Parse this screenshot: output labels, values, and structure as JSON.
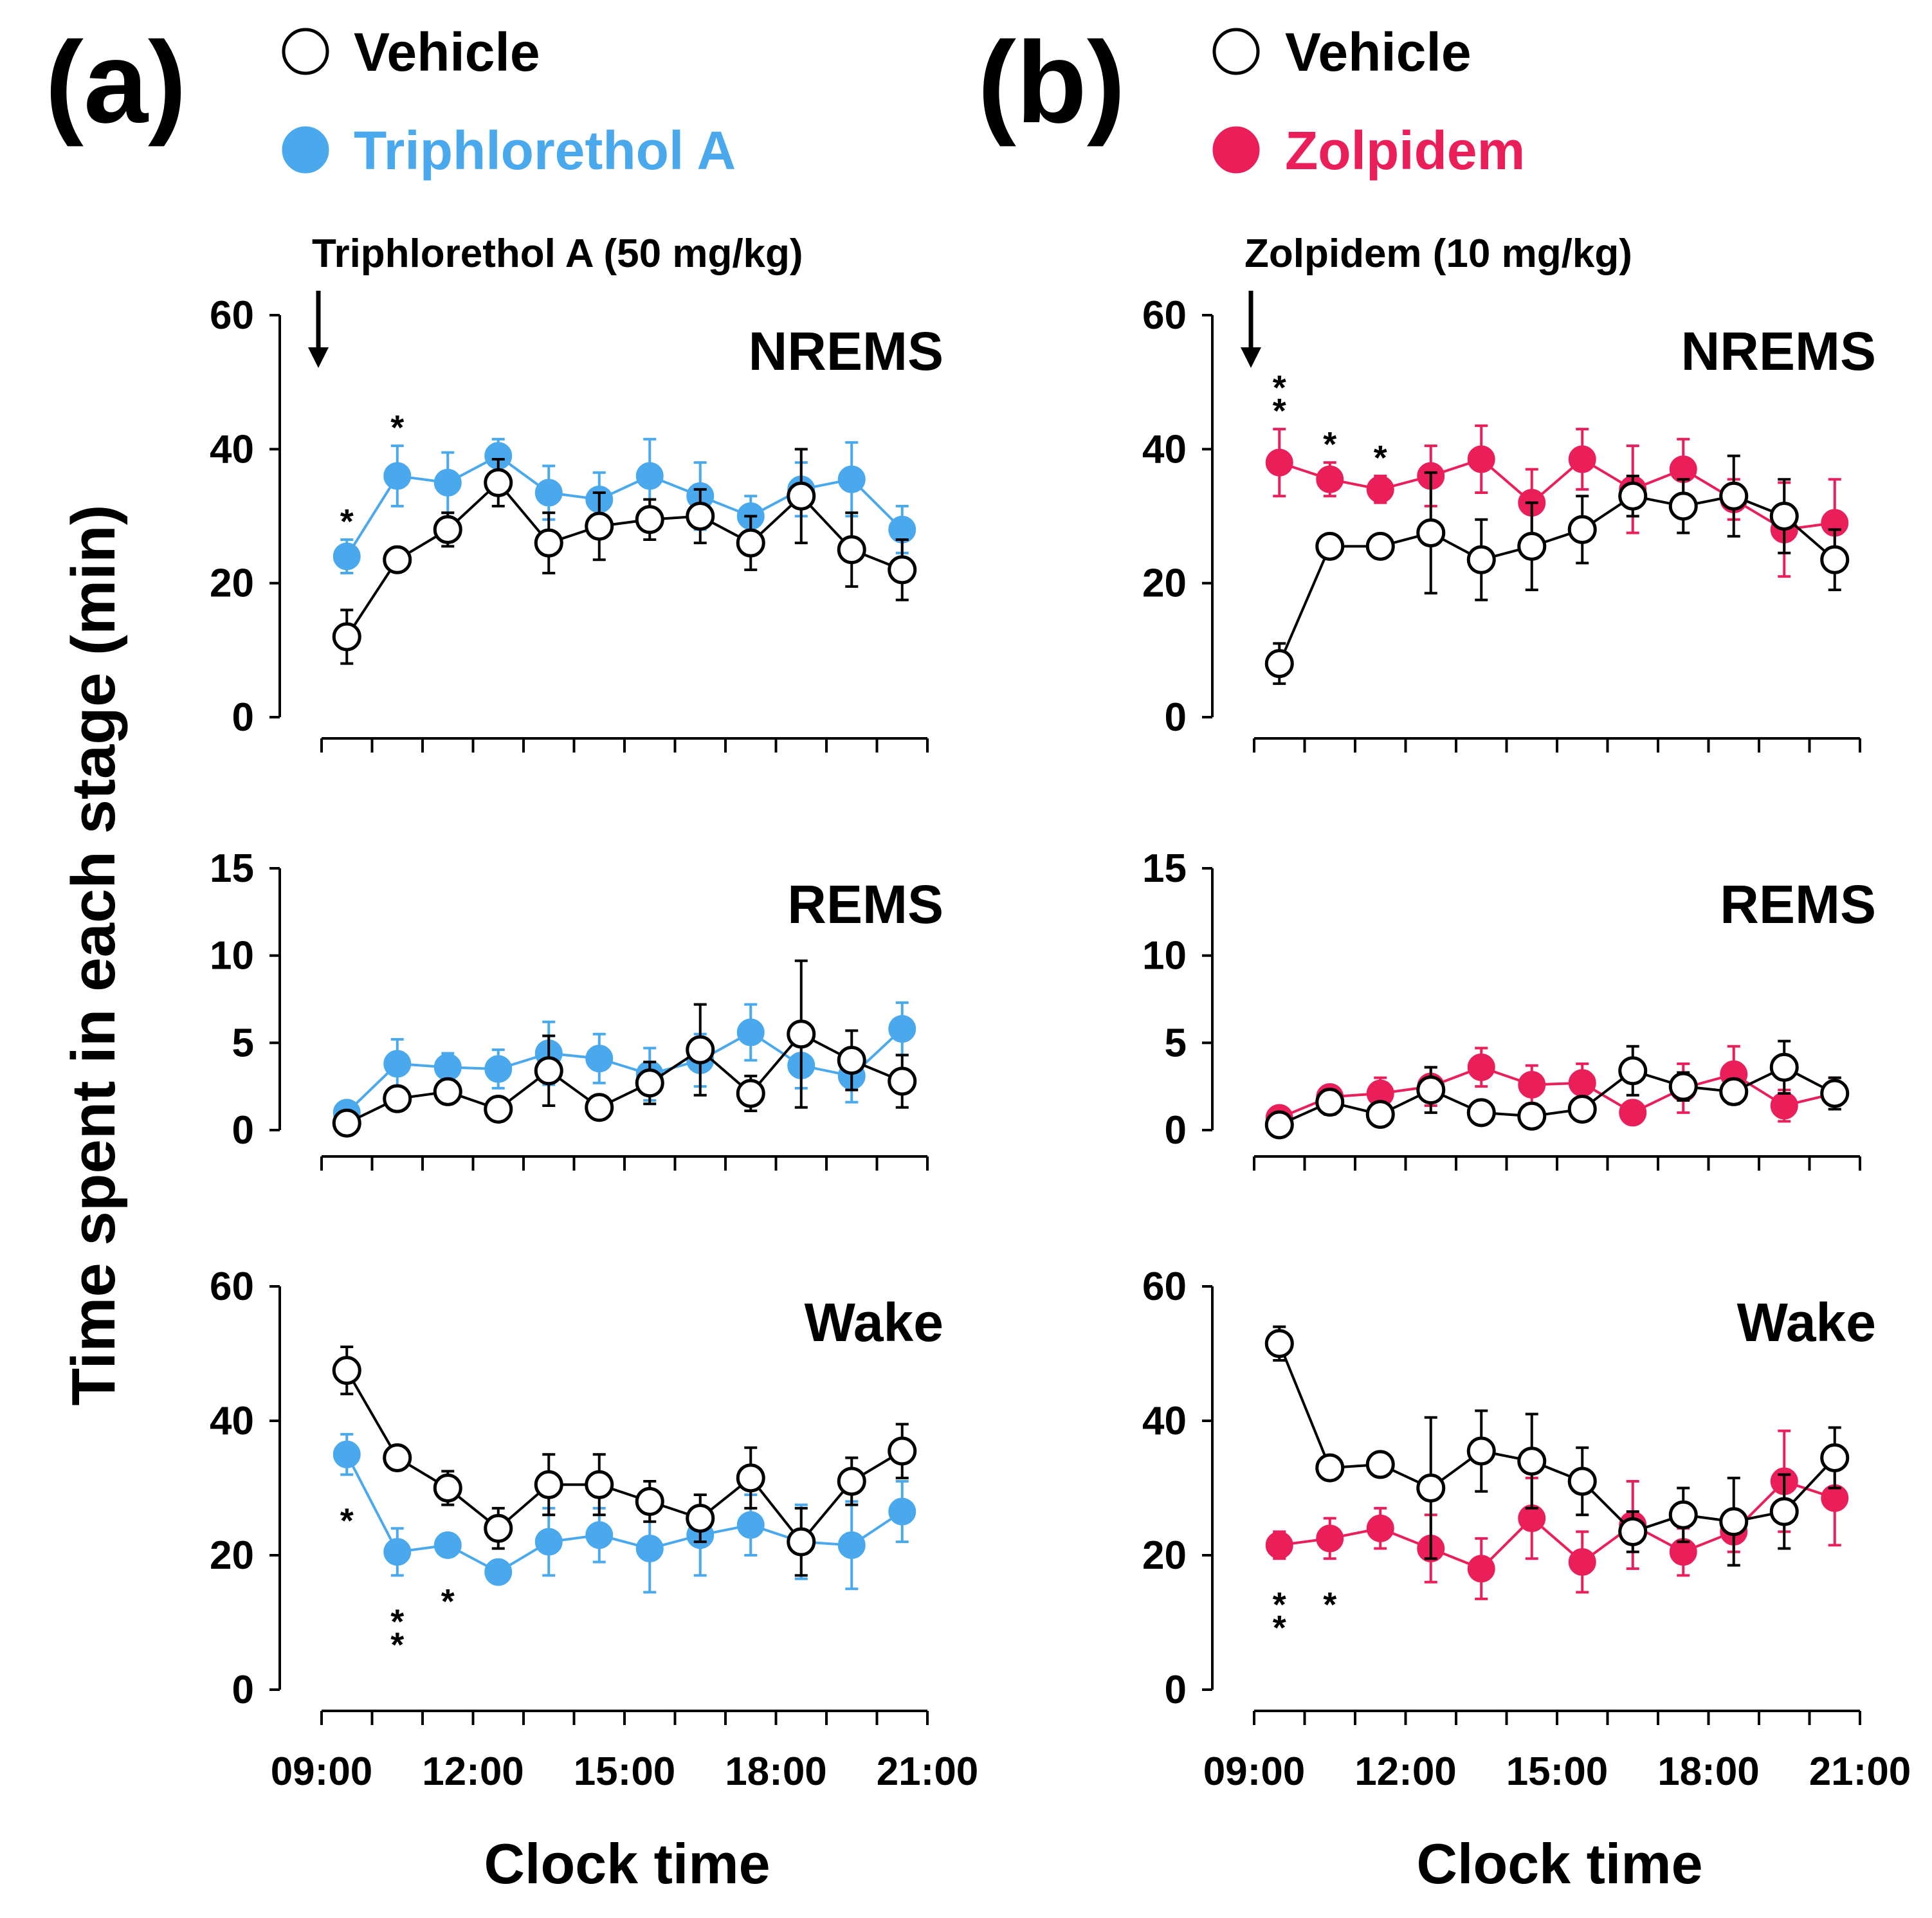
{
  "figure": {
    "ylabel": "Time spent in each stage (min)",
    "xlabel": "Clock time",
    "xtick_labels": [
      "09:00",
      "12:00",
      "15:00",
      "18:00",
      "21:00"
    ]
  },
  "panels": [
    {
      "id": "a",
      "letter": "(a)",
      "legend": [
        {
          "label": "Vehicle",
          "filled": false,
          "color": "#000000"
        },
        {
          "label": "Triphlorethol A",
          "filled": true,
          "color": "#4aa8ec"
        }
      ],
      "drug_label": "Triphlorethol A (50 mg/kg)"
    },
    {
      "id": "b",
      "letter": "(b)",
      "legend": [
        {
          "label": "Vehicle",
          "filled": false,
          "color": "#000000"
        },
        {
          "label": "Zolpidem",
          "filled": true,
          "color": "#ea1f5a"
        }
      ],
      "drug_label": "Zolpidem (10 mg/kg)"
    }
  ],
  "chart_data": [
    {
      "type": "line",
      "panel": "a",
      "title": "NREMS",
      "xlabel": "Clock time",
      "ylabel": "Time spent in each stage (min)",
      "x": [
        9.5,
        10.5,
        11.5,
        12.5,
        13.5,
        14.5,
        15.5,
        16.5,
        17.5,
        18.5,
        19.5,
        20.5
      ],
      "ylim": [
        0,
        60
      ],
      "yticks": [
        0,
        20,
        40,
        60
      ],
      "series": [
        {
          "name": "Vehicle",
          "filled": false,
          "values": [
            12,
            23.5,
            28,
            35,
            26,
            28.5,
            29.5,
            30,
            26,
            33,
            25,
            22
          ],
          "errors": [
            4,
            1.5,
            2.5,
            3.5,
            4.5,
            5,
            3,
            4,
            4,
            7,
            5.5,
            4.5
          ]
        },
        {
          "name": "Triphlorethol A",
          "filled": true,
          "values": [
            24,
            36,
            35,
            39,
            33.5,
            32.5,
            36,
            33,
            30,
            34,
            35.5,
            28
          ],
          "errors": [
            2.5,
            4.5,
            4.5,
            2.5,
            4,
            4,
            5.5,
            5,
            3,
            4,
            5.5,
            3.5
          ]
        }
      ],
      "significance": [
        {
          "x": 9.5,
          "marks": "*"
        },
        {
          "x": 10.5,
          "marks": "*"
        }
      ]
    },
    {
      "type": "line",
      "panel": "a",
      "title": "REMS",
      "xlabel": "Clock time",
      "ylabel": "Time spent in each stage (min)",
      "x": [
        9.5,
        10.5,
        11.5,
        12.5,
        13.5,
        14.5,
        15.5,
        16.5,
        17.5,
        18.5,
        19.5,
        20.5
      ],
      "ylim": [
        0,
        15
      ],
      "yticks": [
        0,
        5,
        10,
        15
      ],
      "series": [
        {
          "name": "Vehicle",
          "filled": false,
          "values": [
            0.4,
            1.8,
            2.2,
            1.2,
            3.4,
            1.3,
            2.7,
            4.6,
            2.1,
            5.5,
            4,
            2.8
          ],
          "errors": [
            0.3,
            0.6,
            0.6,
            0.5,
            2,
            0.5,
            1.2,
            2.6,
            1,
            4.2,
            1.7,
            1.5
          ]
        },
        {
          "name": "Triphlorethol A",
          "filled": true,
          "values": [
            1,
            3.8,
            3.6,
            3.5,
            4.4,
            4.1,
            3.2,
            4,
            5.6,
            3.7,
            3.1,
            5.8
          ],
          "errors": [
            0.5,
            1.4,
            0.8,
            1.1,
            1.8,
            1.4,
            1.5,
            1.5,
            1.6,
            1.3,
            1.5,
            1.5
          ]
        }
      ],
      "significance": []
    },
    {
      "type": "line",
      "panel": "a",
      "title": "Wake",
      "xlabel": "Clock time",
      "ylabel": "Time spent in each stage (min)",
      "x": [
        9.5,
        10.5,
        11.5,
        12.5,
        13.5,
        14.5,
        15.5,
        16.5,
        17.5,
        18.5,
        19.5,
        20.5
      ],
      "ylim": [
        0,
        60
      ],
      "yticks": [
        0,
        20,
        40,
        60
      ],
      "series": [
        {
          "name": "Vehicle",
          "filled": false,
          "values": [
            47.5,
            34.5,
            30,
            24,
            30.5,
            30.5,
            28,
            25.5,
            31.5,
            22,
            31,
            35.5
          ],
          "errors": [
            3.5,
            1.5,
            2.5,
            3,
            4.5,
            4.5,
            3,
            3.5,
            4.5,
            5,
            3.5,
            4
          ]
        },
        {
          "name": "Triphlorethol A",
          "filled": true,
          "values": [
            35,
            20.5,
            21.5,
            17.5,
            22,
            23,
            21,
            23,
            24.5,
            22,
            21.5,
            26.5
          ],
          "errors": [
            3,
            3.5,
            1.5,
            1.5,
            5,
            4,
            6.5,
            6,
            4.5,
            5.5,
            6.5,
            4.5
          ]
        }
      ],
      "significance": [
        {
          "x": 9.5,
          "marks": "*"
        },
        {
          "x": 10.5,
          "marks": "**"
        },
        {
          "x": 11.5,
          "marks": "*"
        }
      ]
    },
    {
      "type": "line",
      "panel": "b",
      "title": "NREMS",
      "xlabel": "Clock time",
      "ylabel": "Time spent in each stage (min)",
      "x": [
        9.5,
        10.5,
        11.5,
        12.5,
        13.5,
        14.5,
        15.5,
        16.5,
        17.5,
        18.5,
        19.5,
        20.5
      ],
      "ylim": [
        0,
        60
      ],
      "yticks": [
        0,
        20,
        40,
        60
      ],
      "series": [
        {
          "name": "Vehicle",
          "filled": false,
          "values": [
            8,
            25.5,
            25.5,
            27.5,
            23.5,
            25.5,
            28,
            33,
            31.5,
            33,
            30,
            23.5
          ],
          "errors": [
            3,
            1,
            1.5,
            9,
            6,
            6.5,
            5,
            3,
            4,
            6,
            5.5,
            4.5
          ]
        },
        {
          "name": "Zolpidem",
          "filled": true,
          "values": [
            38,
            35.5,
            34,
            36,
            38.5,
            32,
            38.5,
            34,
            37,
            32.5,
            28,
            29
          ],
          "errors": [
            5,
            2.5,
            2,
            4.5,
            5,
            5,
            4.5,
            6.5,
            4.5,
            3,
            7,
            6.5
          ]
        }
      ],
      "significance": [
        {
          "x": 9.5,
          "marks": "**"
        },
        {
          "x": 10.5,
          "marks": "*"
        },
        {
          "x": 11.5,
          "marks": "*"
        }
      ]
    },
    {
      "type": "line",
      "panel": "b",
      "title": "REMS",
      "xlabel": "Clock time",
      "ylabel": "Time spent in each stage (min)",
      "x": [
        9.5,
        10.5,
        11.5,
        12.5,
        13.5,
        14.5,
        15.5,
        16.5,
        17.5,
        18.5,
        19.5,
        20.5
      ],
      "ylim": [
        0,
        15
      ],
      "yticks": [
        0,
        5,
        10,
        15
      ],
      "series": [
        {
          "name": "Vehicle",
          "filled": false,
          "values": [
            0.3,
            1.6,
            0.9,
            2.3,
            1,
            0.8,
            1.2,
            3.4,
            2.5,
            2.2,
            3.6,
            2.1
          ],
          "errors": [
            0.3,
            0.7,
            0.4,
            1.3,
            0.4,
            0.3,
            0.5,
            1.4,
            0.8,
            0.7,
            1.5,
            0.9
          ]
        },
        {
          "name": "Zolpidem",
          "filled": true,
          "values": [
            0.7,
            1.9,
            2.1,
            2.5,
            3.6,
            2.6,
            2.7,
            1,
            2.4,
            3.2,
            1.4,
            2.1
          ],
          "errors": [
            0.4,
            0.6,
            0.9,
            1.1,
            1.1,
            1.1,
            1.1,
            0.5,
            1.4,
            1.6,
            0.9,
            0.9
          ]
        }
      ],
      "significance": []
    },
    {
      "type": "line",
      "panel": "b",
      "title": "Wake",
      "xlabel": "Clock time",
      "ylabel": "Time spent in each stage (min)",
      "x": [
        9.5,
        10.5,
        11.5,
        12.5,
        13.5,
        14.5,
        15.5,
        16.5,
        17.5,
        18.5,
        19.5,
        20.5
      ],
      "ylim": [
        0,
        60
      ],
      "yticks": [
        0,
        20,
        40,
        60
      ],
      "series": [
        {
          "name": "Vehicle",
          "filled": false,
          "values": [
            51.5,
            33,
            33.5,
            30,
            35.5,
            34,
            31,
            23.5,
            26,
            25,
            26.5,
            34.5
          ],
          "errors": [
            2.5,
            1,
            1,
            10.5,
            6,
            7,
            5,
            3,
            4,
            6.5,
            5.5,
            4.5
          ]
        },
        {
          "name": "Zolpidem",
          "filled": true,
          "values": [
            21.5,
            22.5,
            24,
            21,
            18,
            25.5,
            19,
            24.5,
            20.5,
            23.5,
            31,
            28.5
          ],
          "errors": [
            2,
            3,
            3,
            5,
            4.5,
            6,
            4.5,
            6.5,
            3.5,
            3,
            7.5,
            7
          ]
        }
      ],
      "significance": [
        {
          "x": 9.5,
          "marks": "**"
        },
        {
          "x": 10.5,
          "marks": "*"
        }
      ]
    }
  ]
}
